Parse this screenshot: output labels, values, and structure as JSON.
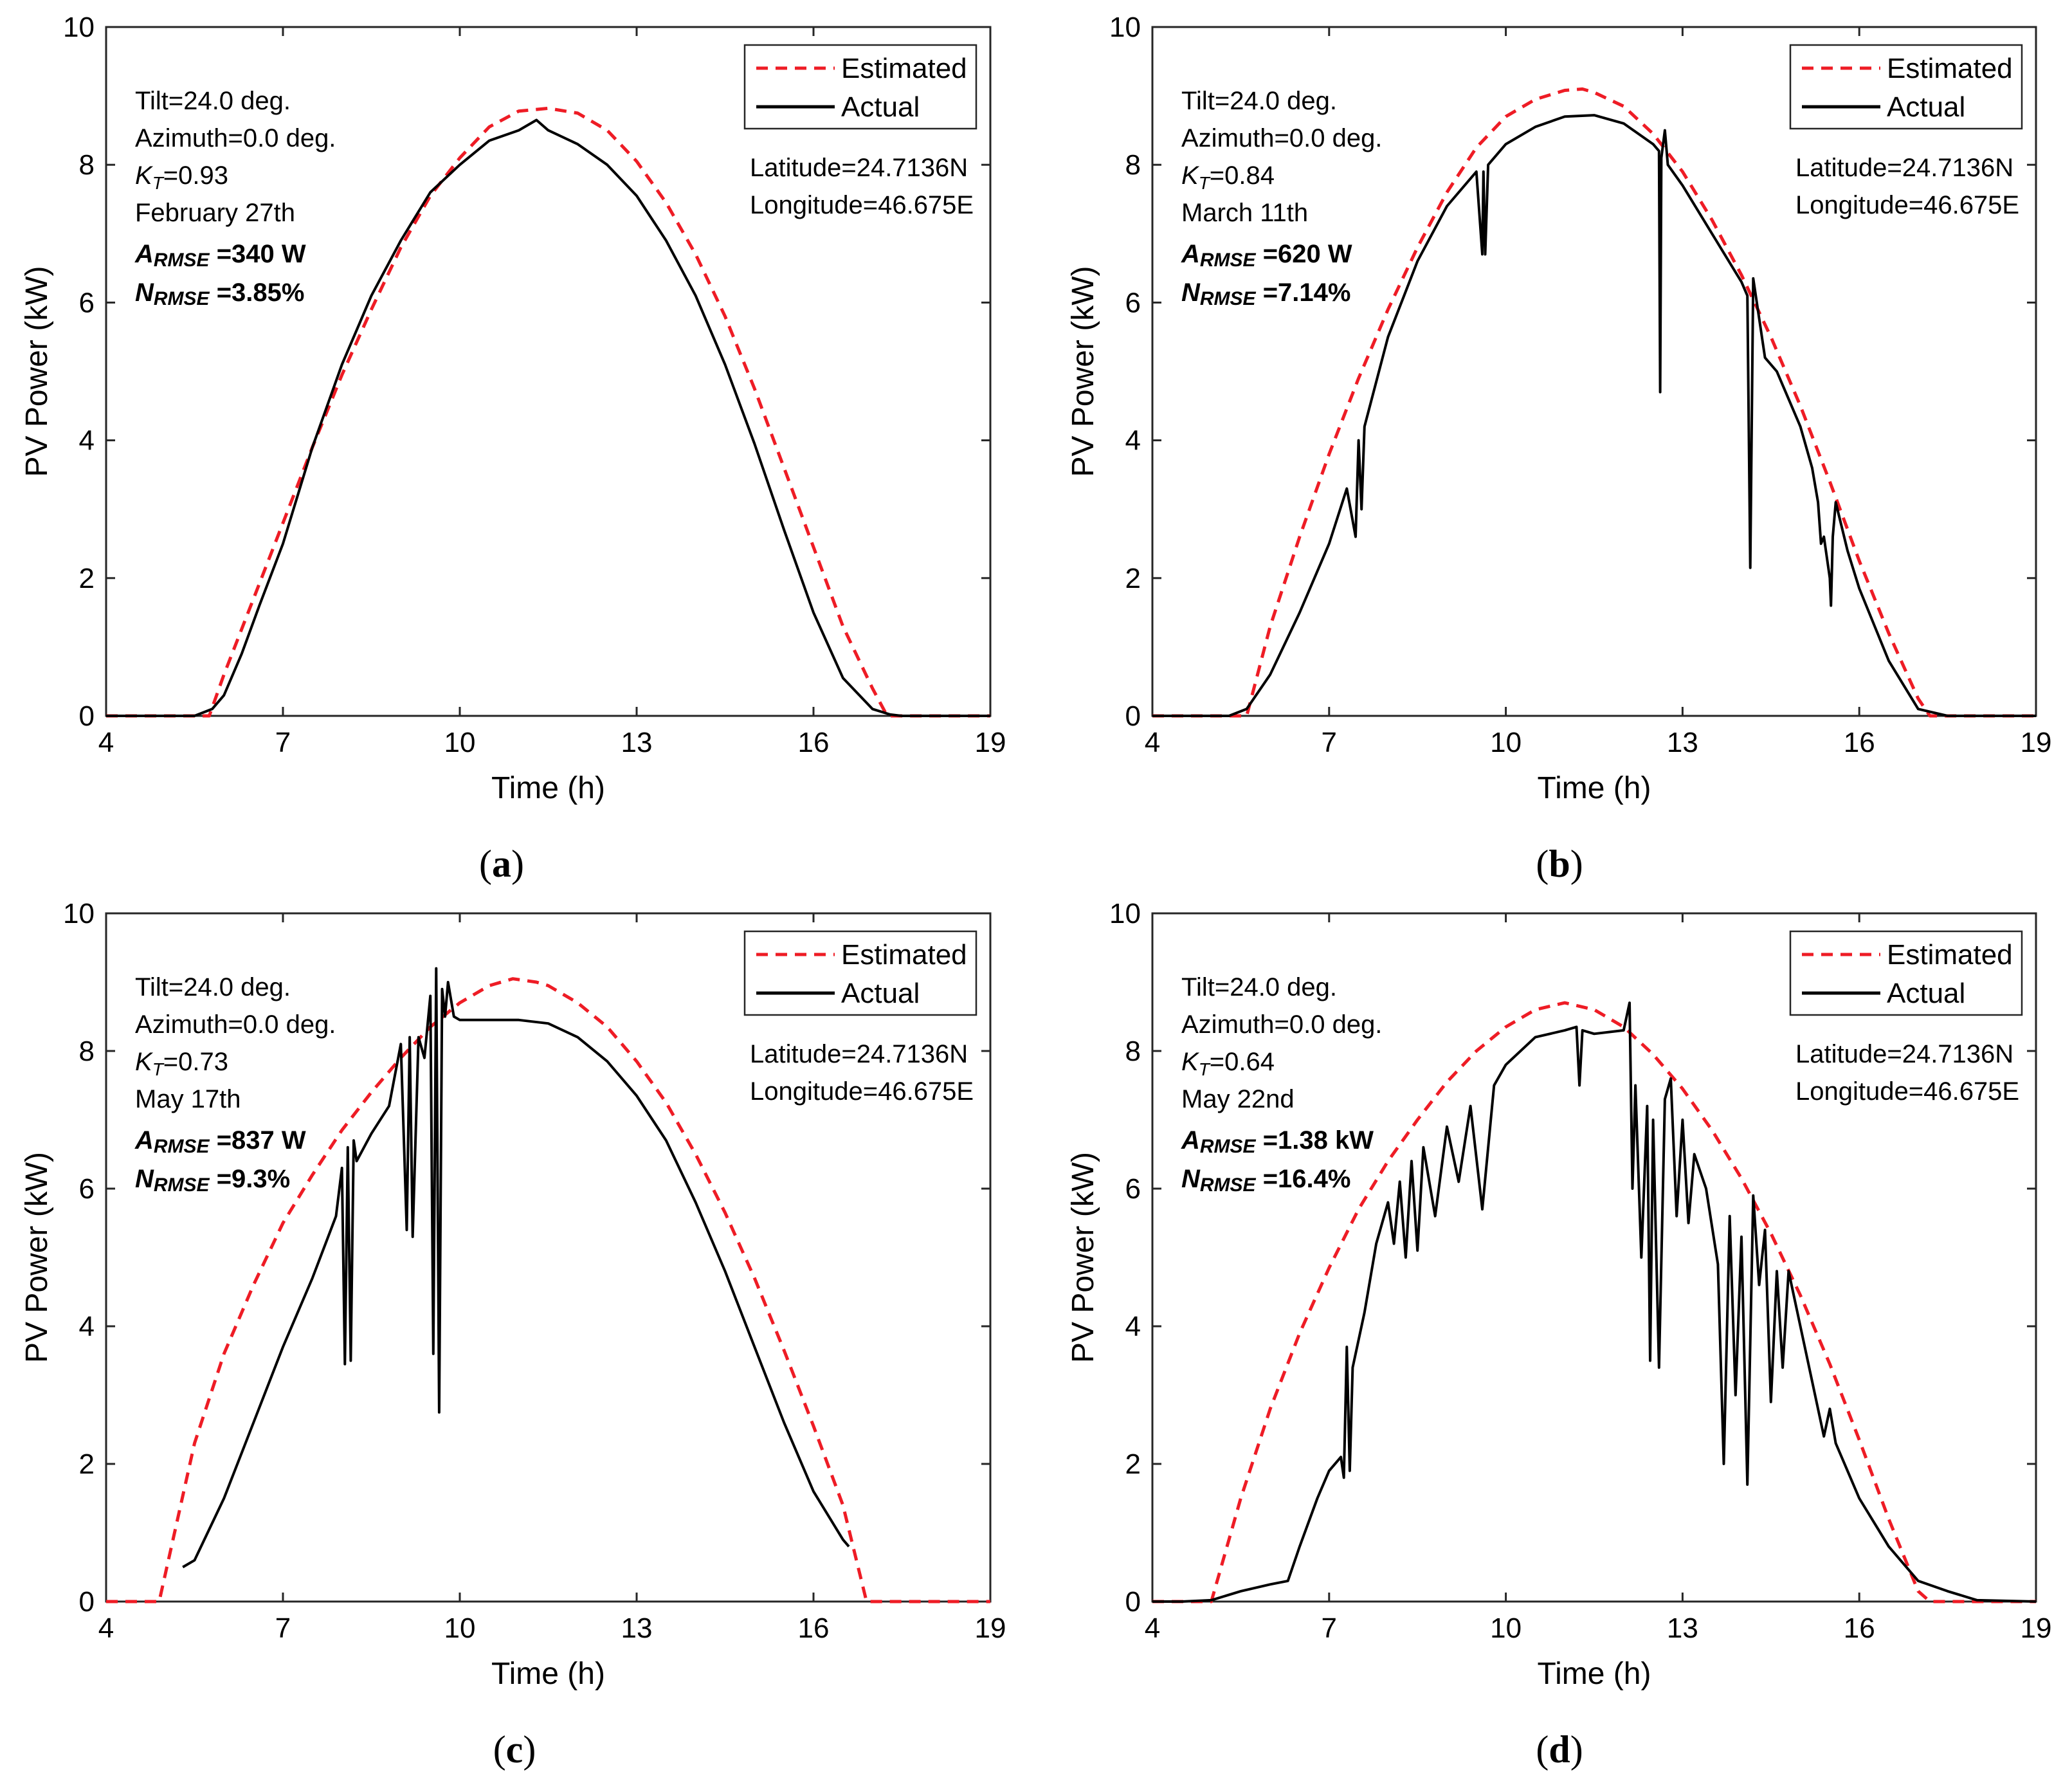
{
  "chart_data": [
    {
      "type": "line",
      "caption": "(a)",
      "caption_letter": "a",
      "xlabel": "Time (h)",
      "ylabel": "PV Power (kW)",
      "xlim": [
        4,
        19
      ],
      "ylim": [
        0,
        10
      ],
      "xticks": [
        4,
        7,
        10,
        13,
        16,
        19
      ],
      "yticks": [
        0,
        2,
        4,
        6,
        8,
        10
      ],
      "legend": {
        "position": "top-right",
        "entries": [
          "Estimated",
          "Actual"
        ]
      },
      "annotations": {
        "tilt": "Tilt=24.0 deg.",
        "azimuth": "Azimuth=0.0 deg.",
        "kt_sym": "K",
        "kt_sub": "T",
        "kt_val": "=0.93",
        "date": "February 27th",
        "armse_sym": "A",
        "armse_sub": "RMSE",
        "armse_val": "=340 W",
        "nrmse_sym": "N",
        "nrmse_sub": "RMSE",
        "nrmse_val": "=3.85%",
        "latitude": "Latitude=24.7136N",
        "longitude": "Longitude=46.675E"
      },
      "series": [
        {
          "name": "Estimated",
          "color": "#ee1c25",
          "style": "dashed",
          "x": [
            4,
            5.75,
            6,
            6.5,
            7,
            7.5,
            8,
            8.5,
            9,
            9.5,
            10,
            10.5,
            11,
            11.5,
            12,
            12.5,
            13,
            13.5,
            14,
            14.5,
            15,
            15.5,
            16,
            16.5,
            17,
            17.25,
            19
          ],
          "y": [
            0,
            0,
            0.6,
            1.7,
            2.8,
            3.9,
            4.95,
            5.9,
            6.8,
            7.55,
            8.1,
            8.55,
            8.78,
            8.82,
            8.75,
            8.5,
            8.05,
            7.45,
            6.7,
            5.8,
            4.75,
            3.6,
            2.45,
            1.3,
            0.4,
            0,
            0
          ]
        },
        {
          "name": "Actual",
          "color": "#000000",
          "style": "solid",
          "x": [
            4,
            5.5,
            5.8,
            6,
            6.3,
            6.6,
            7,
            7.5,
            8,
            8.5,
            9,
            9.5,
            10,
            10.5,
            11,
            11.3,
            11.5,
            12,
            12.5,
            13,
            13.5,
            14,
            14.5,
            15,
            15.5,
            16,
            16.5,
            17,
            17.3,
            17.5,
            19
          ],
          "y": [
            0,
            0,
            0.1,
            0.3,
            0.9,
            1.6,
            2.5,
            3.9,
            5.1,
            6.1,
            6.9,
            7.6,
            8.0,
            8.35,
            8.5,
            8.65,
            8.5,
            8.3,
            8.0,
            7.55,
            6.9,
            6.1,
            5.1,
            3.95,
            2.7,
            1.5,
            0.55,
            0.1,
            0.02,
            0,
            0
          ]
        }
      ]
    },
    {
      "type": "line",
      "caption": "(b)",
      "caption_letter": "b",
      "xlabel": "Time (h)",
      "ylabel": "PV Power (kW)",
      "xlim": [
        4,
        19
      ],
      "ylim": [
        0,
        10
      ],
      "xticks": [
        4,
        7,
        10,
        13,
        16,
        19
      ],
      "yticks": [
        0,
        2,
        4,
        6,
        8,
        10
      ],
      "legend": {
        "position": "top-right",
        "entries": [
          "Estimated",
          "Actual"
        ]
      },
      "annotations": {
        "tilt": "Tilt=24.0 deg.",
        "azimuth": "Azimuth=0.0 deg.",
        "kt_sym": "K",
        "kt_sub": "T",
        "kt_val": "=0.84",
        "date": "March 11th",
        "armse_sym": "A",
        "armse_sub": "RMSE",
        "armse_val": "=620 W",
        "nrmse_sym": "N",
        "nrmse_sub": "RMSE",
        "nrmse_val": "=7.14%",
        "latitude": "Latitude=24.7136N",
        "longitude": "Longitude=46.675E"
      },
      "series": [
        {
          "name": "Estimated",
          "color": "#ee1c25",
          "style": "dashed",
          "x": [
            4,
            5.6,
            6,
            6.5,
            7,
            7.5,
            8,
            8.5,
            9,
            9.5,
            10,
            10.5,
            11,
            11.3,
            11.5,
            12,
            12.5,
            13,
            13.5,
            14,
            14.5,
            15,
            15.5,
            16,
            16.5,
            17,
            17.2,
            19
          ],
          "y": [
            0,
            0,
            1.3,
            2.6,
            3.8,
            4.9,
            5.9,
            6.8,
            7.6,
            8.25,
            8.7,
            8.95,
            9.08,
            9.1,
            9.05,
            8.85,
            8.45,
            7.9,
            7.2,
            6.4,
            5.5,
            4.5,
            3.4,
            2.25,
            1.2,
            0.25,
            0,
            0
          ]
        },
        {
          "name": "Actual",
          "color": "#000000",
          "style": "solid",
          "x": [
            4,
            5.3,
            5.6,
            6,
            6.5,
            7,
            7.3,
            7.45,
            7.5,
            7.55,
            7.6,
            8,
            8.5,
            9,
            9.5,
            9.6,
            9.62,
            9.65,
            9.7,
            10,
            10.5,
            11,
            11.5,
            12,
            12.5,
            12.6,
            12.62,
            12.64,
            12.7,
            12.75,
            13,
            13.5,
            14,
            14.1,
            14.15,
            14.2,
            14.4,
            14.6,
            14.8,
            15,
            15.2,
            15.3,
            15.35,
            15.4,
            15.5,
            15.52,
            15.55,
            15.6,
            15.8,
            16,
            16.5,
            17,
            17.5,
            19
          ],
          "y": [
            0,
            0,
            0.1,
            0.6,
            1.5,
            2.5,
            3.3,
            2.6,
            4.0,
            3.0,
            4.2,
            5.5,
            6.6,
            7.4,
            7.9,
            6.7,
            7.9,
            6.7,
            8.0,
            8.3,
            8.55,
            8.7,
            8.72,
            8.6,
            8.3,
            8.2,
            4.7,
            8.1,
            8.5,
            8.0,
            7.7,
            7.0,
            6.3,
            6.1,
            2.15,
            6.35,
            5.2,
            5.0,
            4.6,
            4.2,
            3.6,
            3.1,
            2.5,
            2.6,
            2.0,
            1.6,
            2.6,
            3.1,
            2.4,
            1.85,
            0.8,
            0.1,
            0,
            0
          ]
        }
      ]
    },
    {
      "type": "line",
      "caption": "(c)",
      "caption_letter": "c",
      "xlabel": "Time (h)",
      "ylabel": "PV Power (kW)",
      "xlim": [
        4,
        19
      ],
      "ylim": [
        0,
        10
      ],
      "xticks": [
        4,
        7,
        10,
        13,
        16,
        19
      ],
      "yticks": [
        0,
        2,
        4,
        6,
        8,
        10
      ],
      "legend": {
        "position": "top-right",
        "entries": [
          "Estimated",
          "Actual"
        ]
      },
      "annotations": {
        "tilt": "Tilt=24.0 deg.",
        "azimuth": "Azimuth=0.0 deg.",
        "kt_sym": "K",
        "kt_sub": "T",
        "kt_val": "=0.73",
        "date": "May 17th",
        "armse_sym": "A",
        "armse_sub": "RMSE",
        "armse_val": "=837 W",
        "nrmse_sym": "N",
        "nrmse_sub": "RMSE",
        "nrmse_val": "=9.3%",
        "latitude": "Latitude=24.7136N",
        "longitude": "Longitude=46.675E"
      },
      "series": [
        {
          "name": "Estimated",
          "color": "#ee1c25",
          "style": "dashed",
          "x": [
            4,
            4.9,
            5.5,
            6,
            6.5,
            7,
            7.5,
            8,
            8.5,
            9,
            9.5,
            10,
            10.5,
            10.9,
            11.3,
            11.5,
            12,
            12.5,
            13,
            13.5,
            14,
            14.5,
            15,
            15.5,
            16,
            16.5,
            16.9,
            19
          ],
          "y": [
            0,
            0,
            2.3,
            3.6,
            4.6,
            5.5,
            6.2,
            6.85,
            7.4,
            7.9,
            8.35,
            8.7,
            8.95,
            9.05,
            9.0,
            8.95,
            8.7,
            8.35,
            7.85,
            7.25,
            6.5,
            5.65,
            4.7,
            3.65,
            2.55,
            1.4,
            0,
            0
          ]
        },
        {
          "name": "Actual",
          "color": "#000000",
          "style": "solid",
          "x": [
            5.3,
            5.5,
            6,
            6.5,
            7,
            7.5,
            7.9,
            8.0,
            8.05,
            8.1,
            8.15,
            8.2,
            8.25,
            8.5,
            8.8,
            9,
            9.1,
            9.15,
            9.2,
            9.3,
            9.4,
            9.5,
            9.55,
            9.6,
            9.65,
            9.7,
            9.75,
            9.8,
            9.9,
            10,
            10.5,
            11,
            11.5,
            12,
            12.5,
            13,
            13.5,
            14,
            14.5,
            15,
            15.5,
            16,
            16.5,
            16.6
          ],
          "y": [
            0.5,
            0.6,
            1.5,
            2.6,
            3.7,
            4.7,
            5.6,
            6.3,
            3.45,
            6.6,
            3.5,
            6.7,
            6.4,
            6.8,
            7.2,
            8.1,
            5.4,
            8.2,
            5.3,
            8.2,
            7.9,
            8.8,
            3.6,
            9.2,
            2.75,
            8.9,
            8.5,
            9.0,
            8.5,
            8.45,
            8.45,
            8.45,
            8.4,
            8.2,
            7.85,
            7.35,
            6.7,
            5.8,
            4.8,
            3.7,
            2.6,
            1.6,
            0.9,
            0.8
          ]
        }
      ]
    },
    {
      "type": "line",
      "caption": "(d)",
      "caption_letter": "d",
      "xlabel": "Time (h)",
      "ylabel": "PV Power (kW)",
      "xlim": [
        4,
        19
      ],
      "ylim": [
        0,
        10
      ],
      "xticks": [
        4,
        7,
        10,
        13,
        16,
        19
      ],
      "yticks": [
        0,
        2,
        4,
        6,
        8,
        10
      ],
      "legend": {
        "position": "top-right",
        "entries": [
          "Estimated",
          "Actual"
        ]
      },
      "annotations": {
        "tilt": "Tilt=24.0 deg.",
        "azimuth": "Azimuth=0.0 deg.",
        "kt_sym": "K",
        "kt_sub": "T",
        "kt_val": "=0.64",
        "date": "May 22nd",
        "armse_sym": "A",
        "armse_sub": "RMSE",
        "armse_val": "=1.38 kW",
        "nrmse_sym": "N",
        "nrmse_sub": "RMSE",
        "nrmse_val": "=16.4%",
        "latitude": "Latitude=24.7136N",
        "longitude": "Longitude=46.675E"
      },
      "series": [
        {
          "name": "Estimated",
          "color": "#ee1c25",
          "style": "dashed",
          "x": [
            4,
            5.0,
            5.5,
            6,
            6.5,
            7,
            7.5,
            8,
            8.5,
            9,
            9.5,
            10,
            10.5,
            11,
            11.5,
            12,
            12.5,
            13,
            13.5,
            14,
            14.5,
            15,
            15.5,
            16,
            16.5,
            17,
            17.2,
            19
          ],
          "y": [
            0,
            0,
            1.5,
            2.8,
            3.9,
            4.85,
            5.7,
            6.4,
            7.0,
            7.55,
            8.0,
            8.35,
            8.6,
            8.7,
            8.6,
            8.35,
            7.95,
            7.45,
            6.85,
            6.15,
            5.35,
            4.45,
            3.45,
            2.35,
            1.2,
            0.15,
            0,
            0
          ]
        },
        {
          "name": "Actual",
          "color": "#000000",
          "style": "solid",
          "x": [
            4,
            4.5,
            5,
            5.5,
            6,
            6.3,
            6.5,
            6.8,
            7,
            7.2,
            7.25,
            7.3,
            7.35,
            7.4,
            7.6,
            7.8,
            8.0,
            8.1,
            8.2,
            8.3,
            8.4,
            8.5,
            8.6,
            8.8,
            9.0,
            9.2,
            9.4,
            9.6,
            9.8,
            10,
            10.5,
            11,
            11.2,
            11.25,
            11.3,
            11.5,
            12,
            12.1,
            12.15,
            12.2,
            12.3,
            12.4,
            12.45,
            12.5,
            12.6,
            12.7,
            12.8,
            12.9,
            13.0,
            13.1,
            13.2,
            13.4,
            13.6,
            13.7,
            13.8,
            13.9,
            14.0,
            14.1,
            14.2,
            14.3,
            14.4,
            14.5,
            14.6,
            14.7,
            14.8,
            15.0,
            15.2,
            15.4,
            15.5,
            15.6,
            15.8,
            16,
            16.5,
            17,
            17.5,
            18,
            19
          ],
          "y": [
            0,
            0,
            0.02,
            0.15,
            0.25,
            0.3,
            0.8,
            1.5,
            1.9,
            2.1,
            1.8,
            3.7,
            1.9,
            3.4,
            4.2,
            5.2,
            5.8,
            5.2,
            6.1,
            5.0,
            6.4,
            5.1,
            6.6,
            5.6,
            6.9,
            6.1,
            7.2,
            5.7,
            7.5,
            7.8,
            8.2,
            8.3,
            8.35,
            7.5,
            8.3,
            8.25,
            8.3,
            8.7,
            6.0,
            7.5,
            5.0,
            7.2,
            3.5,
            7.0,
            3.4,
            7.3,
            7.6,
            5.6,
            7.0,
            5.5,
            6.5,
            6.0,
            4.9,
            2.0,
            5.6,
            3.0,
            5.3,
            1.7,
            5.9,
            4.6,
            5.4,
            2.9,
            4.8,
            3.4,
            4.8,
            4.0,
            3.2,
            2.4,
            2.8,
            2.3,
            1.9,
            1.5,
            0.8,
            0.3,
            0.15,
            0.02,
            0
          ]
        }
      ]
    }
  ]
}
